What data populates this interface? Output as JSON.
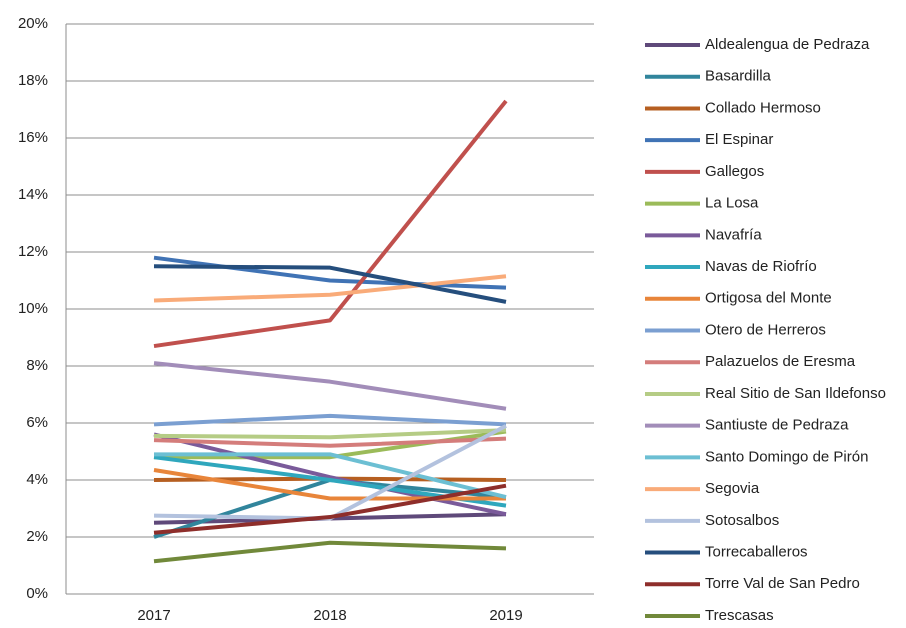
{
  "chart_data": {
    "type": "line",
    "categories": [
      "2017",
      "2018",
      "2019"
    ],
    "ylim": [
      0,
      20
    ],
    "yticks": [
      {
        "value": 0,
        "label": "0%"
      },
      {
        "value": 2,
        "label": "2%"
      },
      {
        "value": 4,
        "label": "4%"
      },
      {
        "value": 6,
        "label": "6%"
      },
      {
        "value": 8,
        "label": "8%"
      },
      {
        "value": 10,
        "label": "10%"
      },
      {
        "value": 12,
        "label": "12%"
      },
      {
        "value": 14,
        "label": "14%"
      },
      {
        "value": 16,
        "label": "16%"
      },
      {
        "value": 18,
        "label": "18%"
      },
      {
        "value": 20,
        "label": "20%"
      }
    ],
    "grid": true,
    "legend": "right",
    "series": [
      {
        "name": "Aldealengua de Pedraza",
        "color": "#5f497a",
        "values": [
          2.5,
          2.65,
          2.8
        ]
      },
      {
        "name": "Basardilla",
        "color": "#31859c",
        "values": [
          2.0,
          4.0,
          3.4
        ]
      },
      {
        "name": "Collado Hermoso",
        "color": "#b65f21",
        "values": [
          4.0,
          4.05,
          4.0
        ]
      },
      {
        "name": "El Espinar",
        "color": "#4073b5",
        "values": [
          11.8,
          11.0,
          10.75
        ]
      },
      {
        "name": "Gallegos",
        "color": "#c0504d",
        "values": [
          8.7,
          9.6,
          17.3
        ]
      },
      {
        "name": "La Losa",
        "color": "#9bbb59",
        "values": [
          4.8,
          4.8,
          5.7
        ]
      },
      {
        "name": "Navafría",
        "color": "#7a5a9a",
        "values": [
          5.6,
          4.1,
          2.8
        ]
      },
      {
        "name": "Navas de Riofrío",
        "color": "#2fa7bd",
        "values": [
          4.8,
          4.0,
          3.1
        ]
      },
      {
        "name": "Ortigosa del Monte",
        "color": "#e8853a",
        "values": [
          4.35,
          3.35,
          3.35
        ]
      },
      {
        "name": "Otero de Herreros",
        "color": "#7b9fd1",
        "values": [
          5.95,
          6.25,
          5.95
        ]
      },
      {
        "name": "Palazuelos de Eresma",
        "color": "#d47d7b",
        "values": [
          5.4,
          5.2,
          5.45
        ]
      },
      {
        "name": "Real Sitio de San Ildefonso",
        "color": "#b5cc85",
        "values": [
          5.55,
          5.5,
          5.75
        ]
      },
      {
        "name": "Santiuste de Pedraza",
        "color": "#a28db9",
        "values": [
          8.1,
          7.45,
          6.5
        ]
      },
      {
        "name": "Santo Domingo de Pirón",
        "color": "#6cbfd3",
        "values": [
          4.9,
          4.9,
          3.4
        ]
      },
      {
        "name": "Segovia",
        "color": "#f9ab79",
        "values": [
          10.3,
          10.5,
          11.15
        ]
      },
      {
        "name": "Sotosalbos",
        "color": "#b3c2de",
        "values": [
          2.75,
          2.65,
          5.9
        ]
      },
      {
        "name": "Torrecaballeros",
        "color": "#254e7d",
        "values": [
          11.5,
          11.45,
          10.25
        ]
      },
      {
        "name": "Torre Val de San Pedro",
        "color": "#8e2e2b",
        "values": [
          2.15,
          2.7,
          3.8
        ]
      },
      {
        "name": "Trescasas",
        "color": "#71893a",
        "values": [
          1.15,
          1.8,
          1.6
        ]
      }
    ]
  }
}
